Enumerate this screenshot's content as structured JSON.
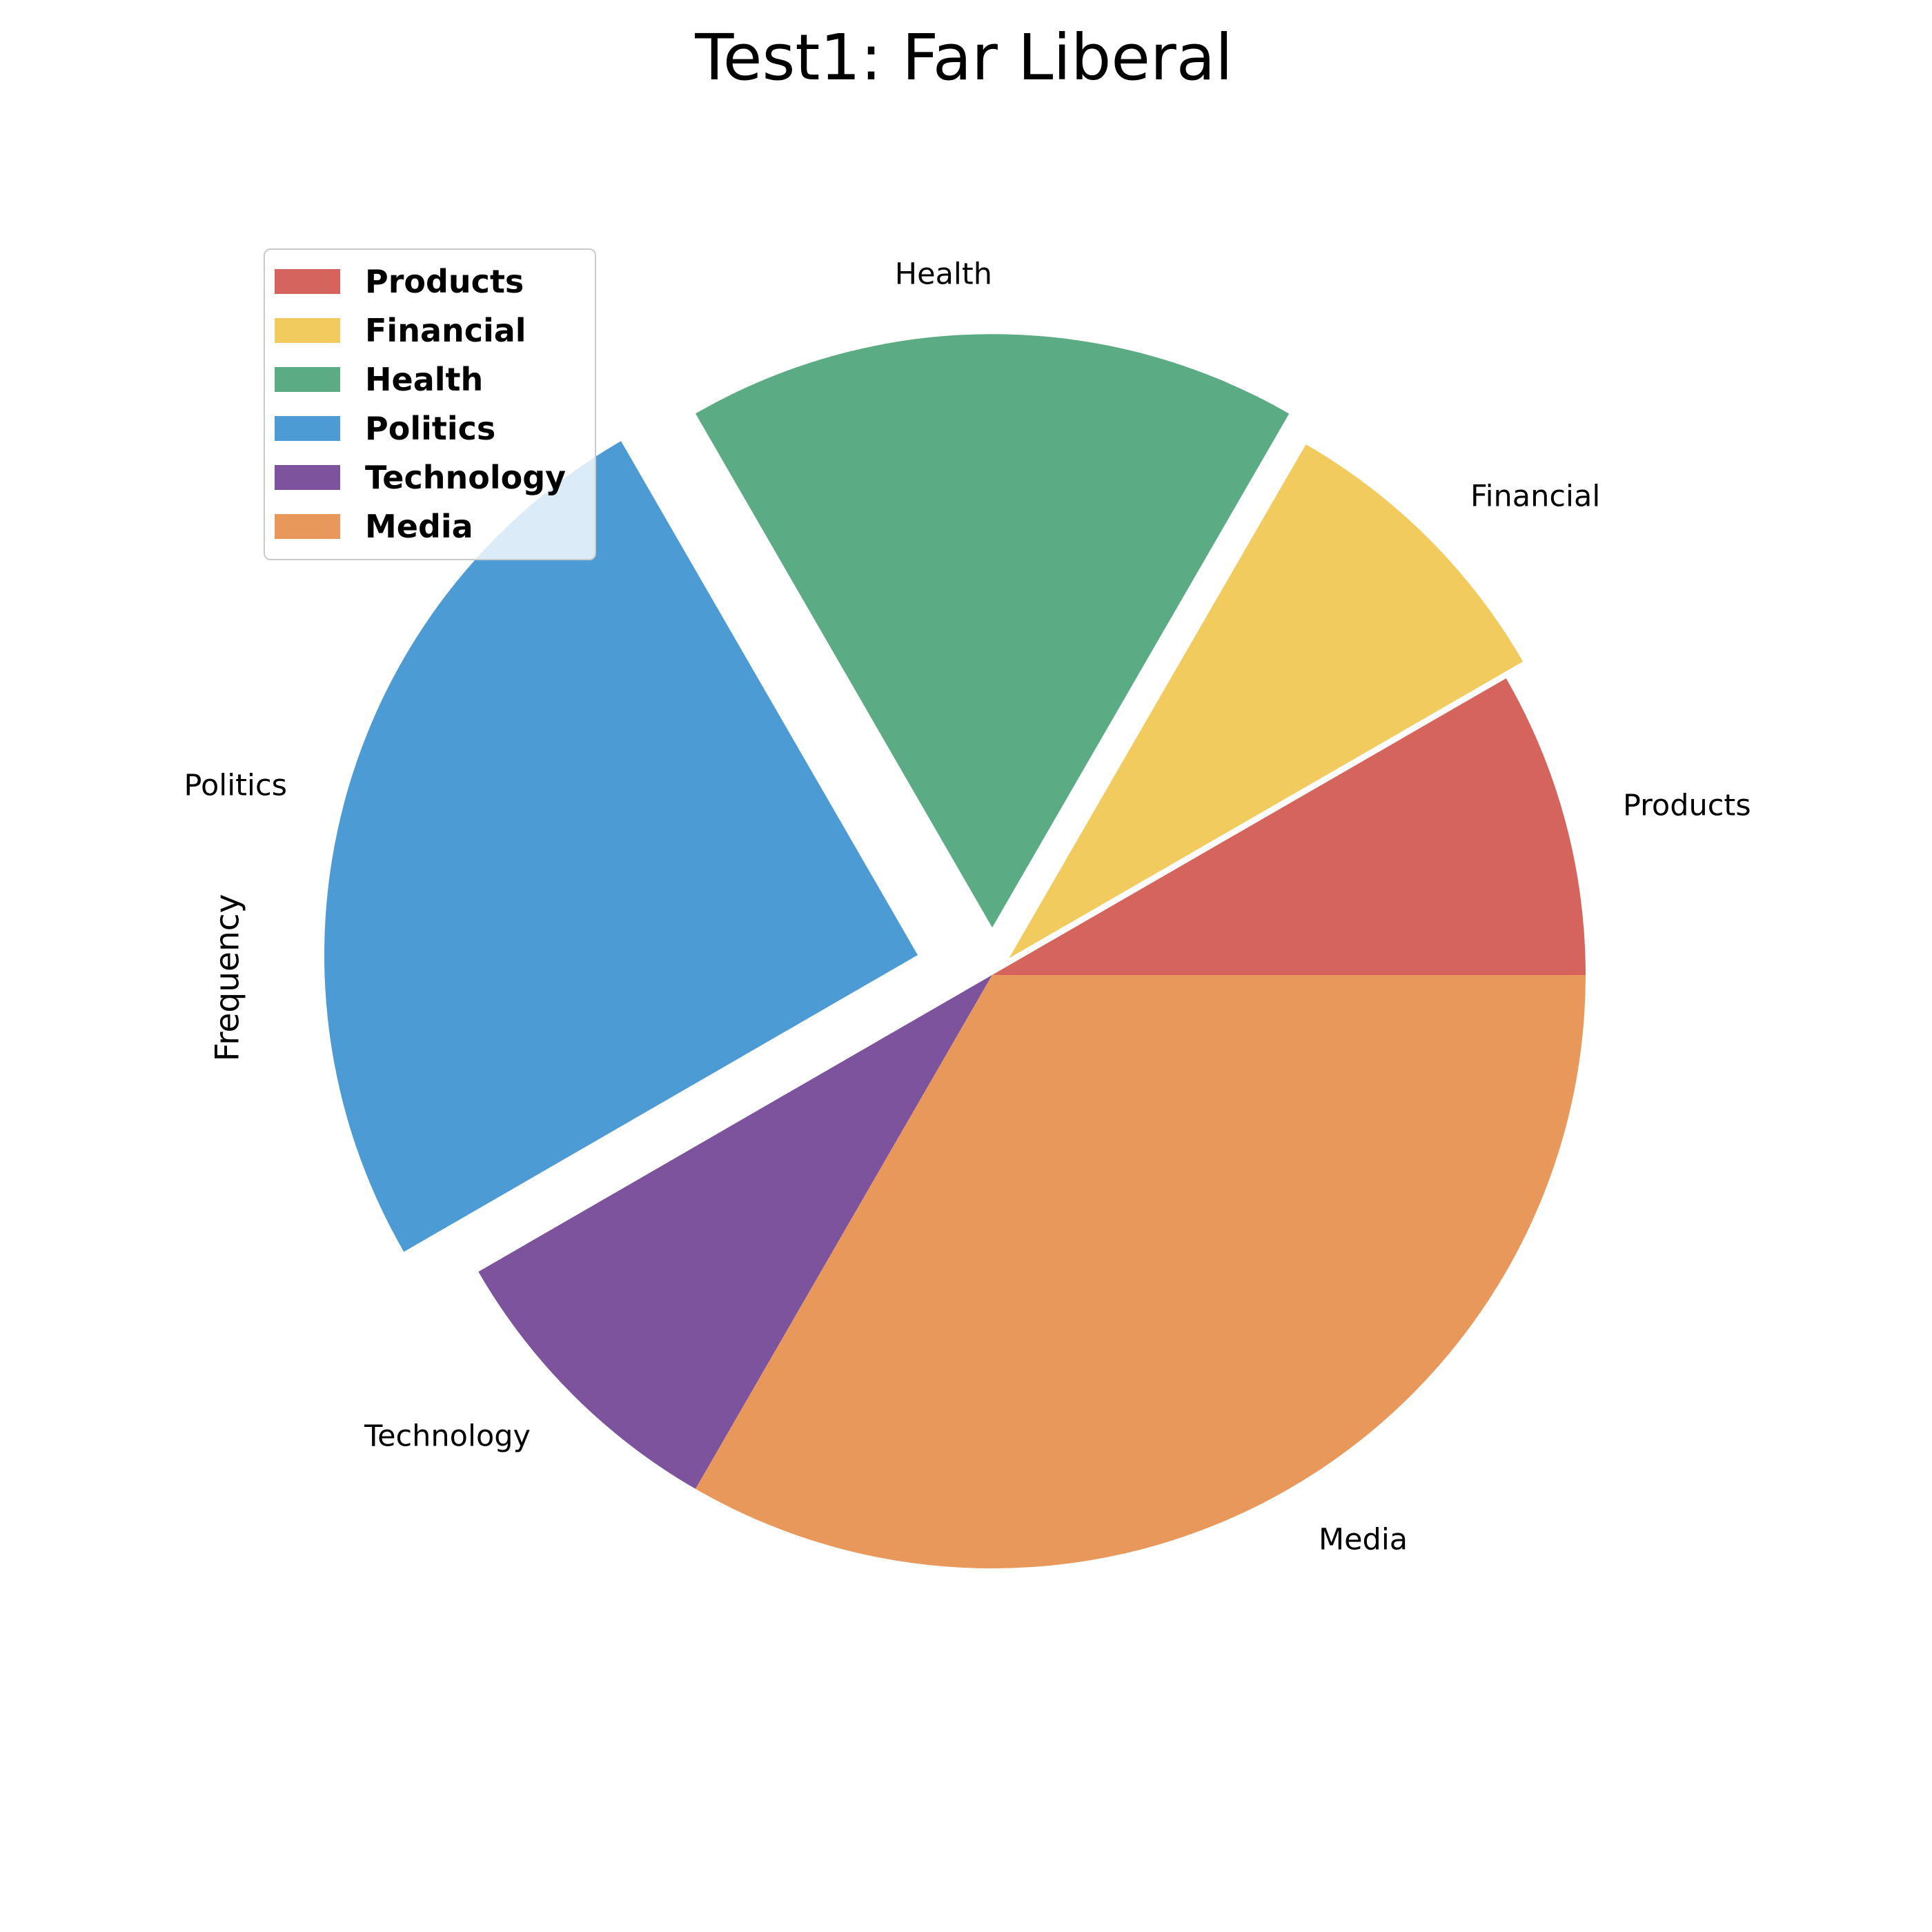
{
  "chart_data": {
    "type": "pie",
    "title": "Test1: Far Liberal",
    "ylabel": "Frequency",
    "categories": [
      "Products",
      "Financial",
      "Health",
      "Politics",
      "Technology",
      "Media"
    ],
    "values": [
      8.33,
      8.33,
      16.67,
      25.0,
      8.33,
      33.33
    ],
    "values_unit": "percent_of_total",
    "start_angle": 0,
    "direction": "counterclockwise",
    "explode": [
      0,
      0.04,
      0.08,
      0.13,
      0,
      0
    ],
    "colors": [
      "#D4645C",
      "#F2CB5E",
      "#5BAB84",
      "#4D9BD4",
      "#7C539C",
      "#E9985C"
    ],
    "slice_labels": [
      "Products",
      "Financial",
      "Health",
      "Politics",
      "Technology",
      "Media"
    ],
    "label_distance": 1.1,
    "grid": false,
    "legend": {
      "position": "upper-left",
      "entries": [
        {
          "label": "Products",
          "color": "#D4645C"
        },
        {
          "label": "Financial",
          "color": "#F2CB5E"
        },
        {
          "label": "Health",
          "color": "#5BAB84"
        },
        {
          "label": "Politics",
          "color": "#4D9BD4"
        },
        {
          "label": "Technology",
          "color": "#7C539C"
        },
        {
          "label": "Media",
          "color": "#E9985C"
        }
      ]
    }
  }
}
